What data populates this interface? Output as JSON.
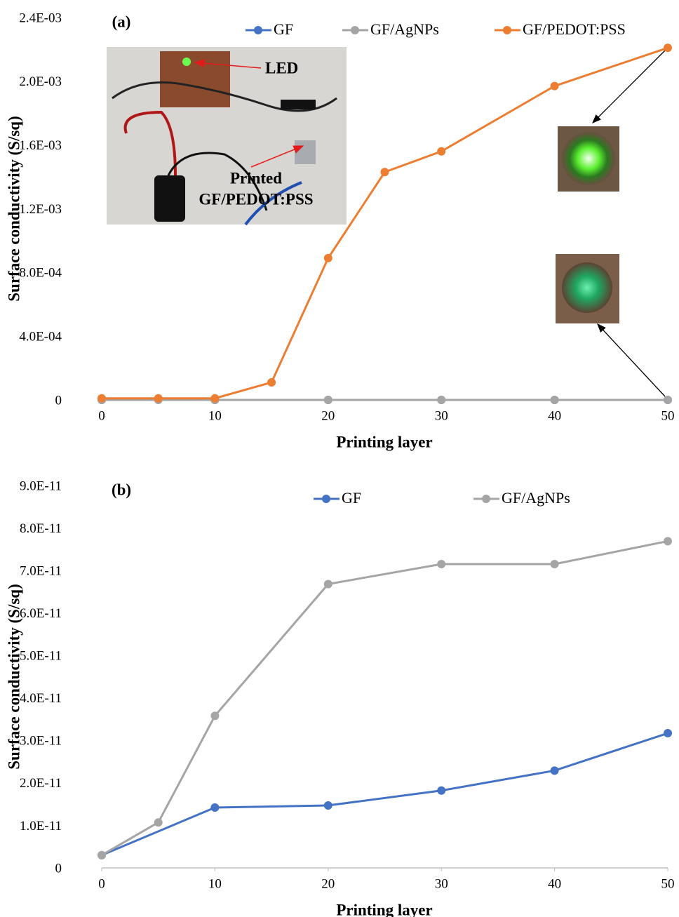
{
  "chart_data": [
    {
      "type": "line",
      "panel_label": "(a)",
      "xlabel": "Printing layer",
      "ylabel": "Surface conductivity (S/sq)",
      "xlim": [
        0,
        50
      ],
      "xticks": [
        0,
        10,
        20,
        30,
        40,
        50
      ],
      "ylim": [
        0,
        0.0024
      ],
      "yticks": [
        0,
        {
          "value": 0.0004,
          "label": "4.0E-04"
        },
        {
          "value": 0.0008,
          "label": "8.0E-04"
        },
        {
          "value": 0.0012,
          "label": "1.2E-03"
        },
        {
          "value": 0.0016,
          "label": "1.6E-03"
        },
        {
          "value": 0.002,
          "label": "2.0E-03"
        },
        {
          "value": 0.0024,
          "label": "2.4E-03"
        }
      ],
      "series": [
        {
          "name": "GF",
          "color": "#4472c4",
          "x": [
            0,
            10,
            20,
            30,
            40,
            50
          ],
          "values": [
            3e-12,
            1.42e-11,
            1.47e-11,
            1.82e-11,
            2.29e-11,
            3.17e-11
          ]
        },
        {
          "name": "GF/AgNPs",
          "color": "#a5a5a5",
          "x": [
            0,
            5,
            10,
            20,
            30,
            40,
            50
          ],
          "values": [
            3e-12,
            1.07e-11,
            3.58e-11,
            6.68e-11,
            7.15e-11,
            7.15e-11,
            7.69e-11
          ]
        },
        {
          "name": "GF/PEDOT:PSS",
          "color": "#ed7d31",
          "x": [
            0,
            5,
            10,
            15,
            20,
            25,
            30,
            40,
            50
          ],
          "values": [
            1e-05,
            1e-05,
            1e-05,
            0.00011,
            0.00089,
            0.00143,
            0.00156,
            0.00197,
            0.00221
          ]
        }
      ],
      "annotations": [
        "LED",
        "Printed",
        "GF/PEDOT:PSS"
      ]
    },
    {
      "type": "line",
      "panel_label": "(b)",
      "xlabel": "Printing layer",
      "ylabel": "Surface conductivity (S/sq)",
      "xlim": [
        0,
        50
      ],
      "xticks": [
        0,
        10,
        20,
        30,
        40,
        50
      ],
      "ylim": [
        0,
        9e-11
      ],
      "yticks": [
        0,
        {
          "value": 1e-11,
          "label": "1.0E-11"
        },
        {
          "value": 2e-11,
          "label": "2.0E-11"
        },
        {
          "value": 3e-11,
          "label": "3.0E-11"
        },
        {
          "value": 4e-11,
          "label": "4.0E-11"
        },
        {
          "value": 5e-11,
          "label": "5.0E-11"
        },
        {
          "value": 6e-11,
          "label": "6.0E-11"
        },
        {
          "value": 7e-11,
          "label": "7.0E-11"
        },
        {
          "value": 8e-11,
          "label": "8.0E-11"
        },
        {
          "value": 9e-11,
          "label": "9.0E-11"
        }
      ],
      "series": [
        {
          "name": "GF",
          "color": "#4472c4",
          "x": [
            0,
            10,
            20,
            30,
            40,
            50
          ],
          "values": [
            3e-12,
            1.42e-11,
            1.47e-11,
            1.82e-11,
            2.29e-11,
            3.17e-11
          ]
        },
        {
          "name": "GF/AgNPs",
          "color": "#a5a5a5",
          "x": [
            0,
            5,
            10,
            20,
            30,
            40,
            50
          ],
          "values": [
            3e-12,
            1.07e-11,
            3.58e-11,
            6.68e-11,
            7.15e-11,
            7.15e-11,
            7.69e-11
          ]
        }
      ]
    }
  ]
}
